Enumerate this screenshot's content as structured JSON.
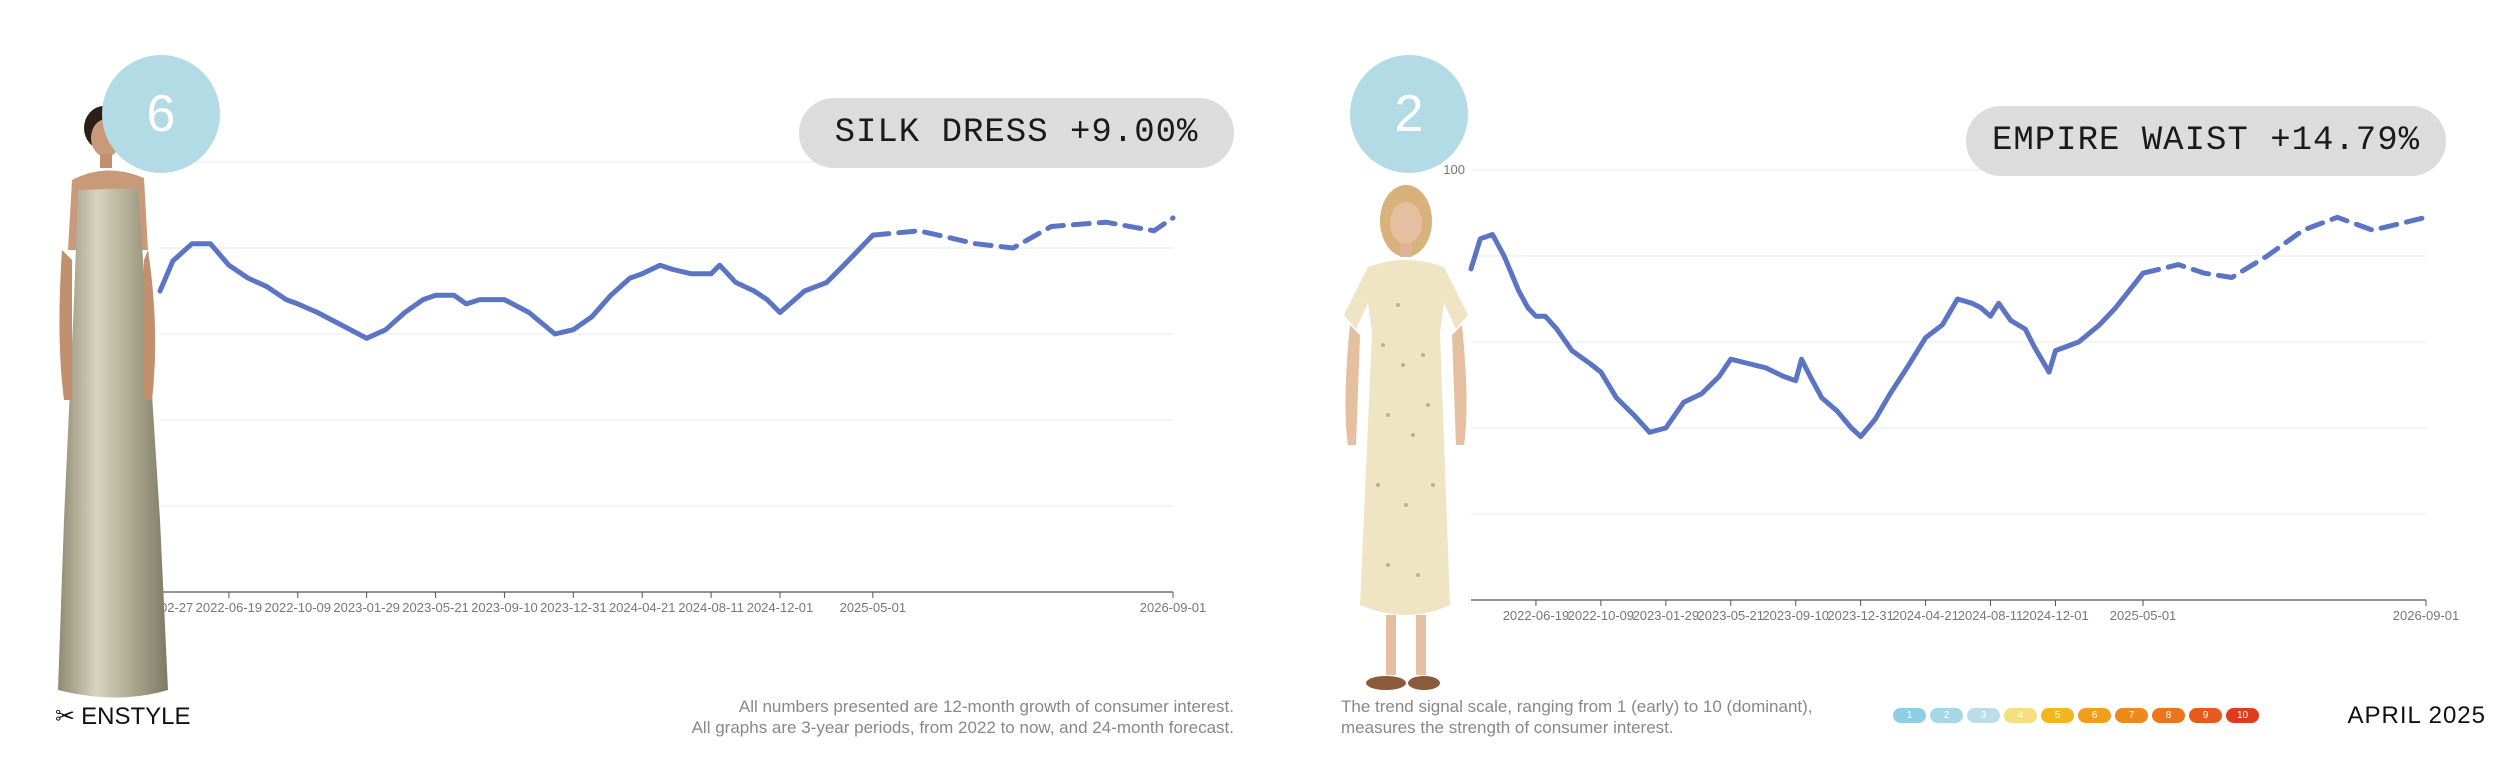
{
  "brand": {
    "name": "ENSTYLE"
  },
  "date_label": "APRIL 2025",
  "left": {
    "rank": "6",
    "title": "SILK DRESS +9.00%",
    "footnote_lines": [
      "All numbers presented are 12-month growth of consumer interest.",
      "All graphs are 3-year periods, from 2022 to now, and 24-month forecast."
    ]
  },
  "right": {
    "rank": "2",
    "title": "EMPIRE WAIST +14.79%",
    "footnote_lines": [
      "The trend signal scale, ranging from 1 (early) to 10 (dominant),",
      "measures the strength of consumer interest."
    ]
  },
  "scale": {
    "labels": [
      "1",
      "2",
      "3",
      "4",
      "5",
      "6",
      "7",
      "8",
      "9",
      "10"
    ],
    "colors": [
      "#8ecfe6",
      "#a6d7e6",
      "#bcdde6",
      "#f5df7e",
      "#f2b61f",
      "#f09e1c",
      "#ee8a1c",
      "#ec761c",
      "#e85a1c",
      "#e03c1c"
    ]
  },
  "colors": {
    "line": "#5b74c4",
    "badge": "#b2dbe6",
    "pill": "#dcdcdc",
    "grid": "#e8e8e8"
  },
  "chart_data": [
    {
      "type": "line",
      "title": "SILK DRESS +9.00%",
      "xlabel": "",
      "ylabel": "",
      "ylim": [
        0,
        100
      ],
      "y_ticks": [
        "0"
      ],
      "x_ticks": [
        "2022-02-27",
        "2022-06-19",
        "2022-10-09",
        "2023-01-29",
        "2023-05-21",
        "2023-09-10",
        "2023-12-31",
        "2024-04-21",
        "2024-08-11",
        "2024-12-01",
        "2025-05-01",
        "2026-09-01"
      ],
      "grid": true,
      "series": [
        {
          "style": "solid",
          "points": [
            [
              "2022-02-27",
              70
            ],
            [
              "2022-03-20",
              77
            ],
            [
              "2022-04-20",
              81
            ],
            [
              "2022-05-20",
              81
            ],
            [
              "2022-06-19",
              76
            ],
            [
              "2022-07-20",
              73
            ],
            [
              "2022-08-20",
              71
            ],
            [
              "2022-09-20",
              68
            ],
            [
              "2022-10-09",
              67
            ],
            [
              "2022-11-10",
              65
            ],
            [
              "2022-12-20",
              62
            ],
            [
              "2023-01-29",
              59
            ],
            [
              "2023-03-01",
              61
            ],
            [
              "2023-04-01",
              65
            ],
            [
              "2023-05-01",
              68
            ],
            [
              "2023-05-21",
              69
            ],
            [
              "2023-06-20",
              69
            ],
            [
              "2023-07-10",
              67
            ],
            [
              "2023-08-01",
              68
            ],
            [
              "2023-09-10",
              68
            ],
            [
              "2023-10-20",
              65
            ],
            [
              "2023-12-01",
              60
            ],
            [
              "2023-12-31",
              61
            ],
            [
              "2024-01-30",
              64
            ],
            [
              "2024-03-01",
              69
            ],
            [
              "2024-04-01",
              73
            ],
            [
              "2024-04-21",
              74
            ],
            [
              "2024-05-20",
              76
            ],
            [
              "2024-06-10",
              75
            ],
            [
              "2024-07-10",
              74
            ],
            [
              "2024-08-11",
              74
            ],
            [
              "2024-08-25",
              76
            ],
            [
              "2024-09-20",
              72
            ],
            [
              "2024-10-20",
              70
            ],
            [
              "2024-11-10",
              68
            ],
            [
              "2024-12-01",
              65
            ],
            [
              "2025-01-10",
              70
            ],
            [
              "2025-02-15",
              72
            ],
            [
              "2025-03-15",
              76
            ],
            [
              "2025-05-01",
              83
            ]
          ]
        },
        {
          "style": "dashed",
          "points": [
            [
              "2025-05-01",
              83
            ],
            [
              "2025-07-15",
              84
            ],
            [
              "2025-10-15",
              81
            ],
            [
              "2025-12-15",
              80
            ],
            [
              "2026-02-15",
              85
            ],
            [
              "2026-05-15",
              86
            ],
            [
              "2026-08-01",
              84
            ],
            [
              "2026-09-01",
              87
            ]
          ]
        }
      ]
    },
    {
      "type": "line",
      "title": "EMPIRE WAIST +14.79%",
      "xlabel": "",
      "ylabel": "",
      "ylim": [
        0,
        100
      ],
      "y_ticks": [
        "100"
      ],
      "x_ticks": [
        "2022-06-19",
        "2022-10-09",
        "2023-01-29",
        "2023-05-21",
        "2023-09-10",
        "2023-12-31",
        "2024-04-21",
        "2024-08-11",
        "2024-12-01",
        "2025-05-01",
        "2026-09-01"
      ],
      "grid": true,
      "series": [
        {
          "style": "solid",
          "points": [
            [
              "2022-02-27",
              77
            ],
            [
              "2022-03-15",
              84
            ],
            [
              "2022-04-05",
              85
            ],
            [
              "2022-04-25",
              80
            ],
            [
              "2022-05-20",
              72
            ],
            [
              "2022-06-05",
              68
            ],
            [
              "2022-06-19",
              66
            ],
            [
              "2022-07-05",
              66
            ],
            [
              "2022-07-25",
              63
            ],
            [
              "2022-08-20",
              58
            ],
            [
              "2022-09-20",
              55
            ],
            [
              "2022-10-09",
              53
            ],
            [
              "2022-11-05",
              47
            ],
            [
              "2022-12-05",
              43
            ],
            [
              "2023-01-01",
              39
            ],
            [
              "2023-01-29",
              40
            ],
            [
              "2023-03-01",
              46
            ],
            [
              "2023-04-01",
              48
            ],
            [
              "2023-05-01",
              52
            ],
            [
              "2023-05-21",
              56
            ],
            [
              "2023-06-20",
              55
            ],
            [
              "2023-07-20",
              54
            ],
            [
              "2023-08-20",
              52
            ],
            [
              "2023-09-10",
              51
            ],
            [
              "2023-09-20",
              56
            ],
            [
              "2023-10-05",
              52
            ],
            [
              "2023-10-25",
              47
            ],
            [
              "2023-11-20",
              44
            ],
            [
              "2023-12-15",
              40
            ],
            [
              "2023-12-31",
              38
            ],
            [
              "2024-01-25",
              42
            ],
            [
              "2024-02-20",
              48
            ],
            [
              "2024-03-20",
              54
            ],
            [
              "2024-04-21",
              61
            ],
            [
              "2024-05-20",
              64
            ],
            [
              "2024-06-15",
              70
            ],
            [
              "2024-07-10",
              69
            ],
            [
              "2024-07-25",
              68
            ],
            [
              "2024-08-11",
              66
            ],
            [
              "2024-08-25",
              69
            ],
            [
              "2024-09-15",
              65
            ],
            [
              "2024-10-10",
              63
            ],
            [
              "2024-10-25",
              59
            ],
            [
              "2024-11-20",
              53
            ],
            [
              "2024-12-01",
              58
            ],
            [
              "2025-01-10",
              60
            ],
            [
              "2025-02-15",
              64
            ],
            [
              "2025-03-15",
              68
            ],
            [
              "2025-05-01",
              76
            ]
          ]
        },
        {
          "style": "dashed",
          "points": [
            [
              "2025-05-01",
              76
            ],
            [
              "2025-07-01",
              78
            ],
            [
              "2025-08-15",
              76
            ],
            [
              "2025-10-01",
              75
            ],
            [
              "2025-12-01",
              80
            ],
            [
              "2026-02-01",
              86
            ],
            [
              "2026-04-01",
              89
            ],
            [
              "2026-06-01",
              86
            ],
            [
              "2026-09-01",
              89
            ]
          ]
        }
      ]
    }
  ]
}
